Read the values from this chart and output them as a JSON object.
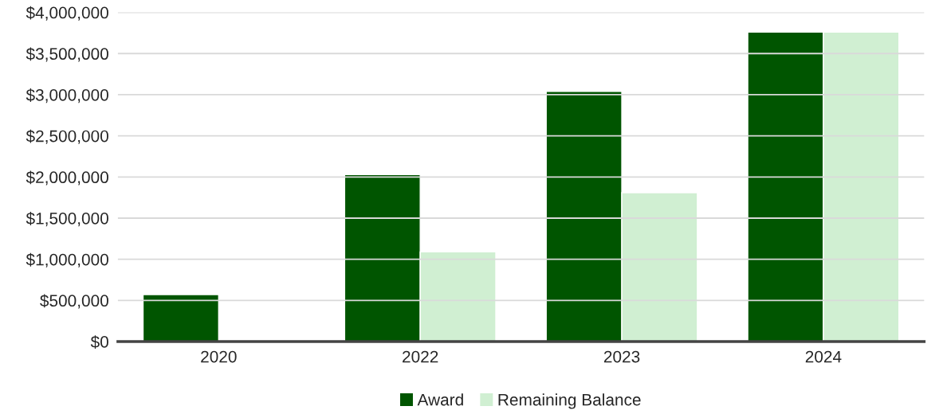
{
  "chart_data": {
    "type": "bar",
    "categories": [
      "2020",
      "2022",
      "2023",
      "2024"
    ],
    "series": [
      {
        "name": "Award",
        "color": "#005500",
        "values": [
          570000,
          2030000,
          3040000,
          3760000
        ]
      },
      {
        "name": "Remaining Balance",
        "color": "#d0efd2",
        "values": [
          null,
          1090000,
          1810000,
          3760000
        ]
      }
    ],
    "ylim": [
      0,
      4000000
    ],
    "yticks": [
      {
        "value": 0,
        "label": "$0"
      },
      {
        "value": 500000,
        "label": "$500,000"
      },
      {
        "value": 1000000,
        "label": "$1,000,000"
      },
      {
        "value": 1500000,
        "label": "$1,500,000"
      },
      {
        "value": 2000000,
        "label": "$2,000,000"
      },
      {
        "value": 2500000,
        "label": "$2,500,000"
      },
      {
        "value": 3000000,
        "label": "$3,000,000"
      },
      {
        "value": 3500000,
        "label": "$3,500,000"
      },
      {
        "value": 4000000,
        "label": "$4,000,000"
      }
    ],
    "grid": "y",
    "legend": "bottom"
  }
}
